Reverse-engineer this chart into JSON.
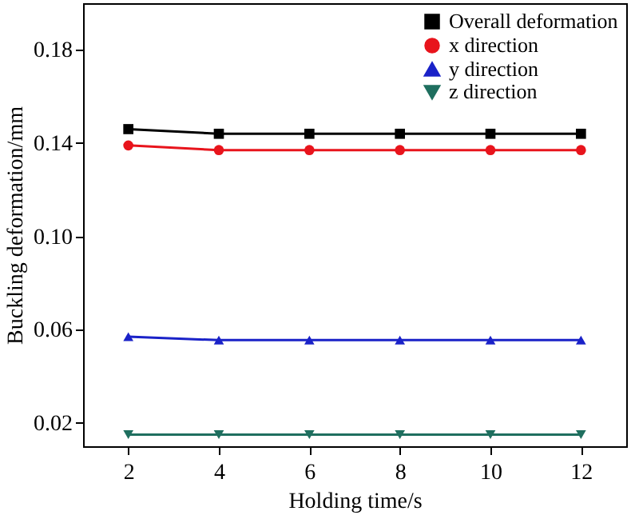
{
  "chart_data": {
    "type": "line",
    "xlabel": "Holding time/s",
    "ylabel": "Buckling deformation/mm",
    "x": [
      2,
      4,
      6,
      8,
      10,
      12
    ],
    "series": [
      {
        "name": "Overall deformation",
        "color": "#000000",
        "marker": "square",
        "values": [
          0.146,
          0.144,
          0.144,
          0.144,
          0.144,
          0.144
        ]
      },
      {
        "name": "x direction",
        "color": "#e8141c",
        "marker": "circle",
        "values": [
          0.139,
          0.137,
          0.137,
          0.137,
          0.137,
          0.137
        ]
      },
      {
        "name": "y direction",
        "color": "#1a22c8",
        "marker": "triangle",
        "values": [
          0.057,
          0.0555,
          0.0555,
          0.0555,
          0.0555,
          0.0555
        ]
      },
      {
        "name": "z direction",
        "color": "#1f6f5f",
        "marker": "triangle-down",
        "values": [
          0.015,
          0.015,
          0.015,
          0.015,
          0.015,
          0.015
        ]
      }
    ],
    "xlim": [
      1,
      13
    ],
    "xticks": [
      2,
      4,
      6,
      8,
      10,
      12
    ],
    "ylim": [
      0.01,
      0.2
    ],
    "yticks": [
      0.02,
      0.06,
      {
        "value": 0.1,
        "label": "0.10"
      },
      0.14,
      0.18
    ],
    "grid": false,
    "legend": "top right",
    "line_style": "solid"
  }
}
